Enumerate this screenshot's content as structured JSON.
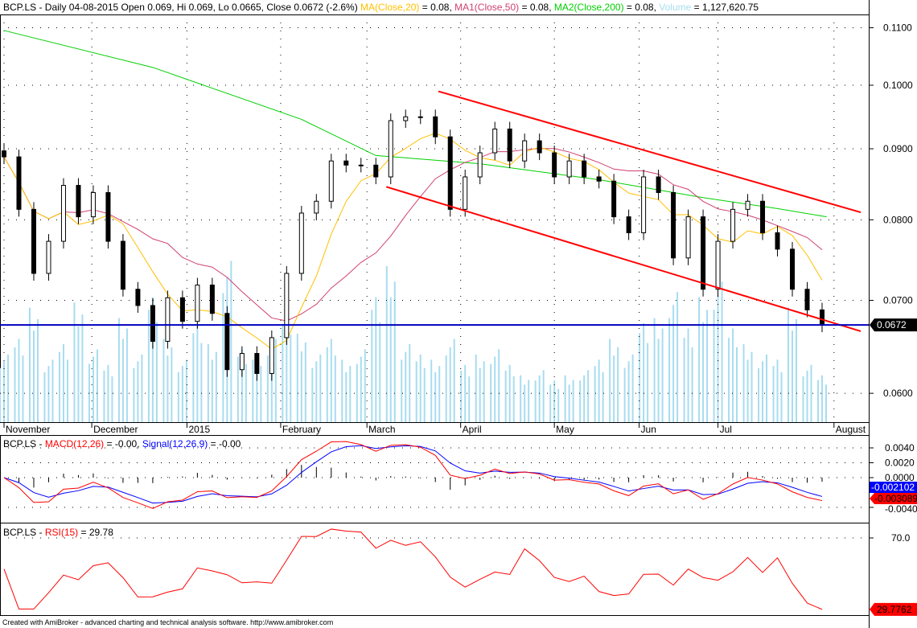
{
  "header": {
    "symbol": "BCP.LS - Daily 04-08-2015 Open 0.069, Hi 0.069, Lo 0.0665, Close 0.0672 (-2.6%)",
    "ma20": " MA(Close,20)",
    "ma20_val": " = 0.08,",
    "ma50": " MA1(Close,50)",
    "ma50_val": " = 0.08,",
    "ma200": " MA2(Close,200)",
    "ma200_val": " = 0.08,",
    "volume": " Volume",
    "volume_val": " = 1,127,620.75"
  },
  "macd_header": {
    "symbol": "BCP.LS - ",
    "macd": "MACD(12,26)",
    "macd_val": " = -0.00, ",
    "signal": "Signal(12,26,9)",
    "signal_val": " = -0.00"
  },
  "rsi_header": {
    "symbol": "BCP.LS - ",
    "rsi": "RSI(15)",
    "rsi_val": " = 29.78"
  },
  "footer": "Created with AmiBroker - advanced charting and technical analysis software. http://www.amibroker.com",
  "colors": {
    "ma20": "#ffc000",
    "ma50": "#d04070",
    "ma200": "#00d000",
    "volume": "#a8dcf0",
    "channel": "#ff0000",
    "support": "#0000c0",
    "macd": "#ff0000",
    "signal": "#0000ff",
    "rsi": "#ff0000"
  },
  "chart_data": [
    {
      "type": "candlestick",
      "title": "BCP.LS - Daily",
      "scale": "log",
      "ylim": [
        0.0575,
        0.1125
      ],
      "y_ticks": [
        "0.1100",
        "0.1000",
        "0.0900",
        "0.0800",
        "0.0700",
        "0.0600"
      ],
      "y_tick_values": [
        0.11,
        0.1,
        0.09,
        0.08,
        0.07,
        0.06
      ],
      "x_ticks": [
        {
          "label": "November",
          "idx": 0
        },
        {
          "label": "December",
          "idx": 5.9
        },
        {
          "label": "2015",
          "idx": 12.3
        },
        {
          "label": "February",
          "idx": 18.6
        },
        {
          "label": "March",
          "idx": 24.4
        },
        {
          "label": "April",
          "idx": 30.7
        },
        {
          "label": "May",
          "idx": 37
        },
        {
          "label": "Jun",
          "idx": 42.7
        },
        {
          "label": "Jul",
          "idx": 48
        },
        {
          "label": "August",
          "idx": 55.8
        }
      ],
      "close": [
        0.0888,
        0.0814,
        0.0732,
        0.0772,
        0.0847,
        0.0804,
        0.0837,
        0.0772,
        0.0713,
        0.0694,
        0.0654,
        0.0703,
        0.0676,
        0.0718,
        0.0685,
        0.0624,
        0.0641,
        0.062,
        0.0658,
        0.0732,
        0.0809,
        0.0825,
        0.0882,
        0.0876,
        0.0876,
        0.0859,
        0.0943,
        0.0949,
        0.0949,
        0.0918,
        0.0814,
        0.0859,
        0.0894,
        0.093,
        0.0882,
        0.0912,
        0.0894,
        0.0859,
        0.0882,
        0.0859,
        0.0853,
        0.0804,
        0.0783,
        0.0859,
        0.0837,
        0.0751,
        0.0804,
        0.0713,
        0.0772,
        0.0814,
        0.0825,
        0.0783,
        0.0762,
        0.0713,
        0.0689,
        0.0672
      ],
      "volume": [
        1.3,
        1.6,
        2.2,
        1.2,
        1.5,
        2.3,
        1.4,
        1.1,
        2.0,
        1.3,
        2.4,
        1.6,
        1.2,
        1.9,
        1.5,
        3.1,
        1.4,
        1.2,
        1.6,
        2.1,
        1.7,
        1.3,
        1.6,
        1.2,
        1.4,
        2.4,
        3.0,
        1.5,
        1.3,
        1.2,
        1.6,
        1.1,
        1.3,
        1.4,
        1.1,
        0.9,
        1.0,
        0.8,
        0.9,
        1.0,
        1.2,
        1.6,
        1.3,
        1.9,
        2.0,
        2.5,
        1.8,
        2.4,
        2.7,
        1.8,
        1.5,
        1.3,
        1.2,
        2.2,
        1.1,
        0.9
      ],
      "ma200": [
        [
          0,
          0.1095
        ],
        [
          10,
          0.103
        ],
        [
          20,
          0.0945
        ],
        [
          25,
          0.089
        ],
        [
          32,
          0.0878
        ],
        [
          40,
          0.0855
        ],
        [
          47,
          0.083
        ],
        [
          52,
          0.0815
        ],
        [
          55.3,
          0.0804
        ]
      ],
      "last_price_label": "0.0672",
      "support_level": 0.0672,
      "trendlines": [
        {
          "name": "upper-channel",
          "from": [
            29.2,
            0.099
          ],
          "to": [
            57.6,
            0.081
          ]
        },
        {
          "name": "lower-channel",
          "from": [
            25.7,
            0.0845
          ],
          "to": [
            57.6,
            0.0665
          ]
        }
      ]
    },
    {
      "type": "line",
      "title": "MACD(12,26), Signal(12,26,9)",
      "ylim": [
        -0.0045,
        0.005
      ],
      "y_ticks": [
        "0.0040",
        "0.0020",
        "0.0000",
        "-0.0040"
      ],
      "y_tick_values": [
        0.004,
        0.002,
        0.0,
        -0.004
      ],
      "last_labels": {
        "signal": "-0.002102",
        "macd": "-0.003089"
      },
      "last_values": {
        "signal": -0.002102,
        "macd": -0.003089
      }
    },
    {
      "type": "line",
      "title": "RSI(15)",
      "y_ticks": [
        "70.0"
      ],
      "y_tick_values": [
        70
      ],
      "last_label": "29.7762",
      "last_value": 29.7762
    }
  ]
}
